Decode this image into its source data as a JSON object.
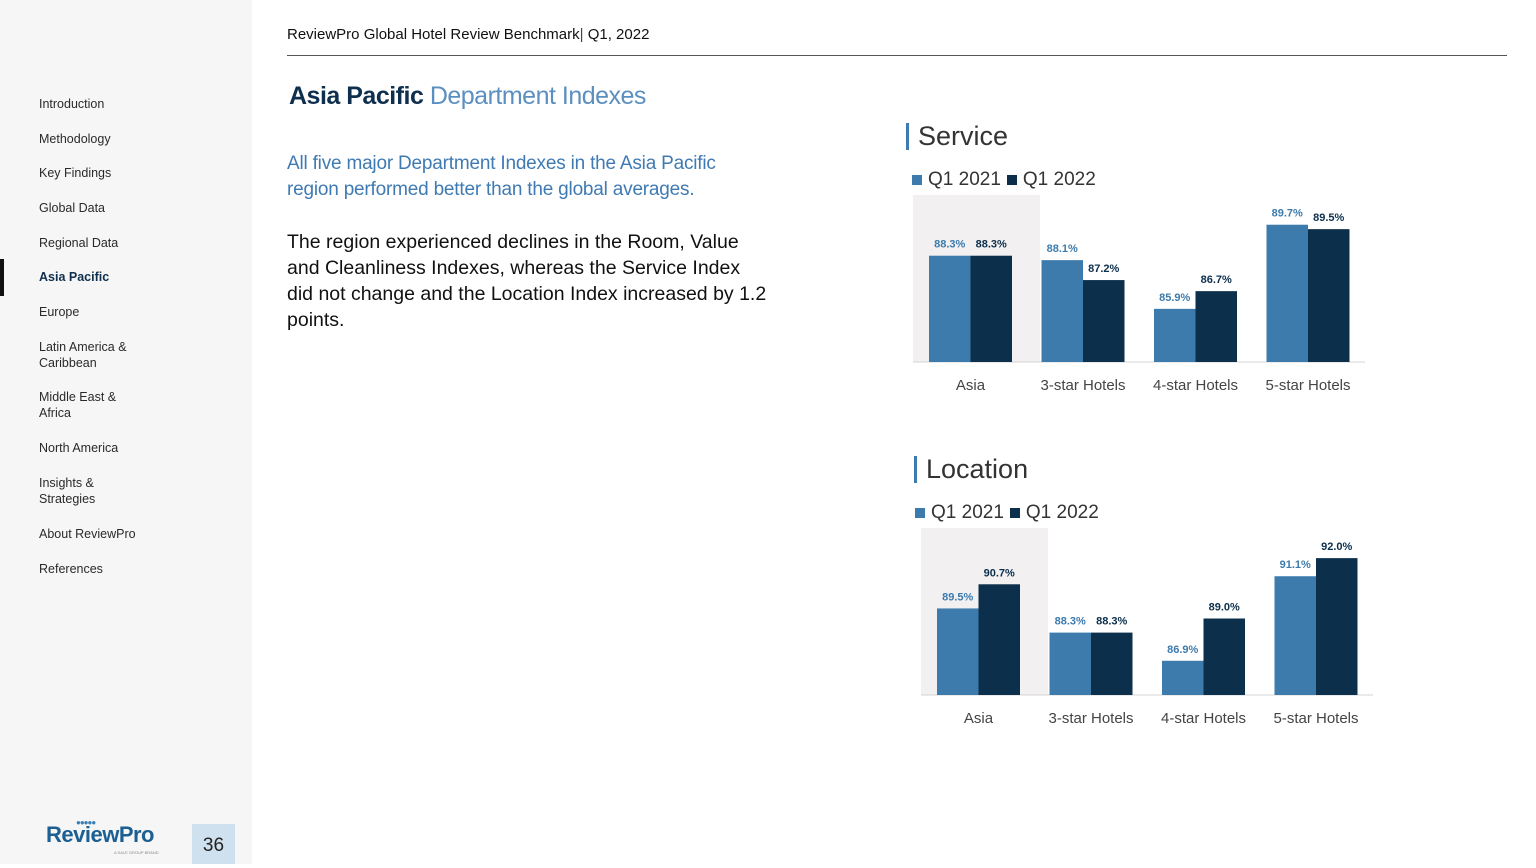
{
  "sidebar": {
    "items": [
      {
        "label": "Introduction"
      },
      {
        "label": "Methodology"
      },
      {
        "label": "Key Findings"
      },
      {
        "label": "Global Data"
      },
      {
        "label": "Regional Data"
      },
      {
        "label": "Asia Pacific"
      },
      {
        "label": "Europe"
      },
      {
        "label": "Latin America & Caribbean"
      },
      {
        "label": "Middle East & Africa"
      },
      {
        "label": "North America"
      },
      {
        "label": "Insights & Strategies"
      },
      {
        "label": "About ReviewPro"
      },
      {
        "label": "References"
      }
    ],
    "logo_text": "ReviewPro",
    "logo_subtext": "A SALE GROUP BRAND",
    "page_number": "36"
  },
  "header": {
    "report_name": "ReviewPro Global Hotel Review Benchmark",
    "separator": "|",
    "period": "Q1, 2022"
  },
  "title": {
    "bold": "Asia Pacific",
    "light": "Department Indexes"
  },
  "intro_text": "All five major Department  Indexes in the Asia Pacific region performed  better than the global averages.",
  "body_text": "The region experienced declines in the Room, Value and Cleanliness Indexes, whereas the Service Index did not change and the Location Index increased by 1.2 points.",
  "colors": {
    "q1_2021": "#3d7bad",
    "q1_2022": "#0c2f4c",
    "highlight_bg": "#f2f0f1"
  },
  "chart_data": [
    {
      "type": "bar",
      "title": "Service",
      "categories": [
        "Asia",
        "3-star Hotels",
        "4-star Hotels",
        "5-star Hotels"
      ],
      "series": [
        {
          "name": "Q1 2021",
          "values": [
            88.3,
            88.1,
            85.9,
            89.7
          ],
          "labels": [
            "88.3%",
            "88.1%",
            "85.9%",
            "89.7%"
          ]
        },
        {
          "name": "Q1 2022",
          "values": [
            88.3,
            87.2,
            86.7,
            89.5
          ],
          "labels": [
            "88.3%",
            "87.2%",
            "86.7%",
            "89.5%"
          ]
        }
      ],
      "ylim": [
        83.5,
        90.5
      ],
      "highlighted_category": "Asia"
    },
    {
      "type": "bar",
      "title": "Location",
      "categories": [
        "Asia",
        "3-star Hotels",
        "4-star Hotels",
        "5-star Hotels"
      ],
      "series": [
        {
          "name": "Q1 2021",
          "values": [
            89.5,
            88.3,
            86.9,
            91.1
          ],
          "labels": [
            "89.5%",
            "88.3%",
            "86.9%",
            "91.1%"
          ]
        },
        {
          "name": "Q1 2022",
          "values": [
            90.7,
            88.3,
            89.0,
            92.0
          ],
          "labels": [
            "90.7%",
            "88.3%",
            "89.0%",
            "92.0%"
          ]
        }
      ],
      "ylim": [
        85.2,
        92.9
      ],
      "highlighted_category": "Asia"
    }
  ]
}
